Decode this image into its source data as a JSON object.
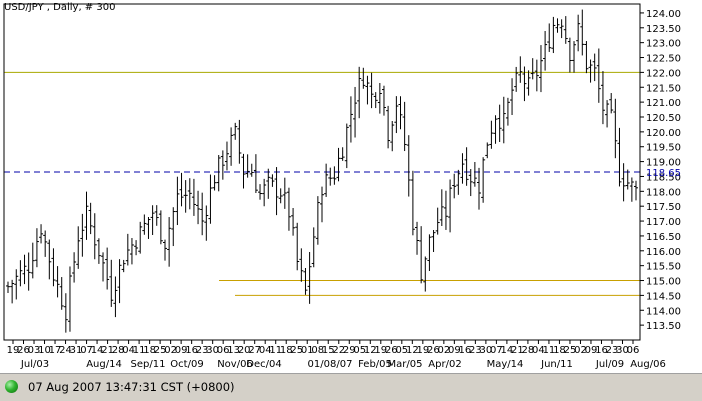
{
  "title": "USD/JPY , Daily, # 300",
  "status": {
    "indicator_icon": "green-status-dot-icon",
    "timestamp": "07 Aug 2007 13:47:31  CST (+0800)"
  },
  "colors": {
    "price_bars": "#000000",
    "resistance_line": "#a8a800",
    "support_lines": "#c8a000",
    "current_price_line": "#0000a8"
  },
  "chart_data": {
    "type": "ohlc",
    "title": "USD/JPY , Daily, # 300",
    "ylim": [
      113.0,
      124.3
    ],
    "y_ticks": [
      "124.00",
      "123.50",
      "123.00",
      "122.50",
      "122.00",
      "121.50",
      "121.00",
      "120.50",
      "120.00",
      "119.50",
      "119.00",
      "118.50",
      "118.00",
      "117.50",
      "117.00",
      "116.50",
      "116.00",
      "115.50",
      "115.00",
      "114.50",
      "114.00",
      "113.50"
    ],
    "day_labels": [
      "19",
      "26",
      "03",
      "10",
      "17",
      "24",
      "31",
      "07",
      "14",
      "21",
      "28",
      "04",
      "11",
      "18",
      "25",
      "02",
      "09",
      "16",
      "23",
      "30",
      "06",
      "13",
      "20",
      "27",
      "04",
      "11",
      "18",
      "25",
      "01",
      "08",
      "15",
      "22",
      "29",
      "05",
      "12",
      "19",
      "26",
      "05",
      "12",
      "19",
      "26",
      "02",
      "09",
      "16",
      "23",
      "30",
      "07",
      "14",
      "21",
      "28",
      "04",
      "11",
      "18",
      "25",
      "02",
      "09",
      "16",
      "23",
      "30",
      "06"
    ],
    "period_labels": [
      "Jul/03",
      "Aug/14",
      "Sep/11",
      "Oct/09",
      "Nov/06",
      "Dec/04",
      "01/08/07",
      "Feb/05",
      "Mar/05",
      "Apr/02",
      "May/14",
      "Jun/11",
      "Jul/09",
      "Aug/06"
    ],
    "horizontal_lines": [
      {
        "label": "resistance",
        "value": 122.0,
        "color": "#a8a800",
        "style": "solid",
        "x_start": "Jul/03"
      },
      {
        "label": "current",
        "value": 118.65,
        "color": "#0000a8",
        "style": "dashed",
        "price_tag": "118.65"
      },
      {
        "label": "support",
        "value": 115.0,
        "color": "#c8a000",
        "style": "solid",
        "x_start": "Nov/06"
      },
      {
        "label": "support",
        "value": 114.5,
        "color": "#c8a000",
        "style": "solid",
        "x_start": "Nov/06"
      }
    ],
    "close_path": [
      [
        0,
        114.8
      ],
      [
        5,
        115.5
      ],
      [
        8,
        116.8
      ],
      [
        11,
        115.2
      ],
      [
        14,
        114.0
      ],
      [
        17,
        116.5
      ],
      [
        19,
        117.2
      ],
      [
        22,
        116.0
      ],
      [
        25,
        114.6
      ],
      [
        28,
        115.8
      ],
      [
        32,
        116.6
      ],
      [
        35,
        117.3
      ],
      [
        38,
        116.3
      ],
      [
        41,
        117.8
      ],
      [
        44,
        117.9
      ],
      [
        47,
        117.0
      ],
      [
        50,
        118.5
      ],
      [
        53,
        119.4
      ],
      [
        55,
        119.9
      ],
      [
        57,
        118.7
      ],
      [
        59,
        118.7
      ],
      [
        61,
        117.9
      ],
      [
        63,
        118.2
      ],
      [
        66,
        118.0
      ],
      [
        68,
        117.3
      ],
      [
        70,
        115.6
      ],
      [
        72,
        114.6
      ],
      [
        74,
        116.5
      ],
      [
        76,
        118.2
      ],
      [
        79,
        118.6
      ],
      [
        81,
        119.5
      ],
      [
        84,
        121.2
      ],
      [
        86,
        121.9
      ],
      [
        88,
        121.2
      ],
      [
        90,
        121.6
      ],
      [
        92,
        120.0
      ],
      [
        94,
        121.0
      ],
      [
        96,
        119.6
      ],
      [
        98,
        117.0
      ],
      [
        100,
        115.3
      ],
      [
        102,
        116.3
      ],
      [
        104,
        117.0
      ],
      [
        106,
        117.3
      ],
      [
        108,
        118.4
      ],
      [
        110,
        119.0
      ],
      [
        112,
        118.5
      ],
      [
        114,
        118.2
      ],
      [
        116,
        119.7
      ],
      [
        118,
        120.6
      ],
      [
        120,
        120.3
      ],
      [
        122,
        121.4
      ],
      [
        124,
        121.9
      ],
      [
        126,
        121.5
      ],
      [
        128,
        122.0
      ],
      [
        130,
        122.7
      ],
      [
        132,
        123.6
      ],
      [
        134,
        123.8
      ],
      [
        136,
        122.7
      ],
      [
        138,
        123.4
      ],
      [
        140,
        122.3
      ],
      [
        142,
        122.0
      ],
      [
        144,
        120.8
      ],
      [
        146,
        120.4
      ],
      [
        148,
        118.6
      ],
      [
        150,
        118.3
      ],
      [
        152,
        118.0
      ]
    ]
  }
}
